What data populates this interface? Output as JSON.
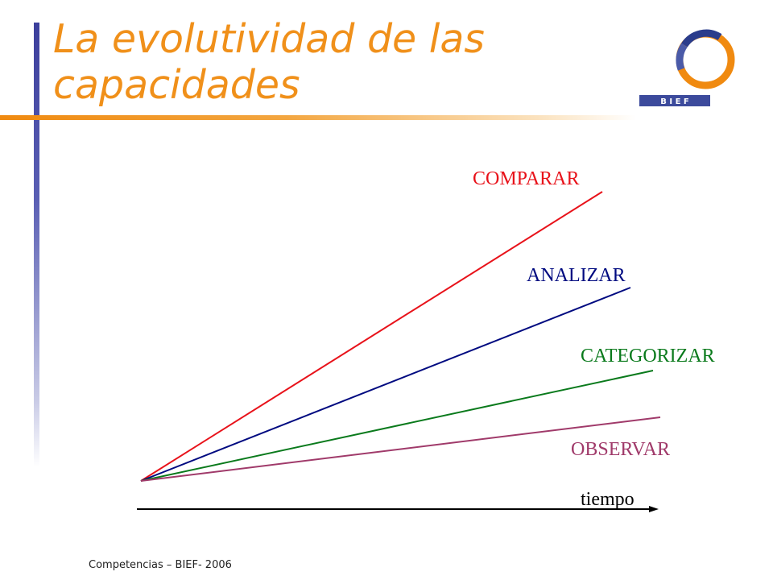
{
  "slide": {
    "title": "La evolutividad de las capacidades",
    "footer": "Competencias – BIEF- 2006"
  },
  "logo": {
    "icon": "bief-ring-logo",
    "text": "B I E F"
  },
  "colors": {
    "title": "#f0901a",
    "accent_bar": "#3c3f9c",
    "comparar": "#e8121a",
    "analizar": "#000a80",
    "categorizar": "#0a7a1c",
    "observar": "#a03a6a",
    "axis": "#000000"
  },
  "diagram": {
    "axis_label": "tiempo",
    "lines": [
      {
        "label": "COMPARAR"
      },
      {
        "label": "ANALIZAR"
      },
      {
        "label": "CATEGORIZAR"
      },
      {
        "label": "OBSERVAR"
      }
    ]
  }
}
